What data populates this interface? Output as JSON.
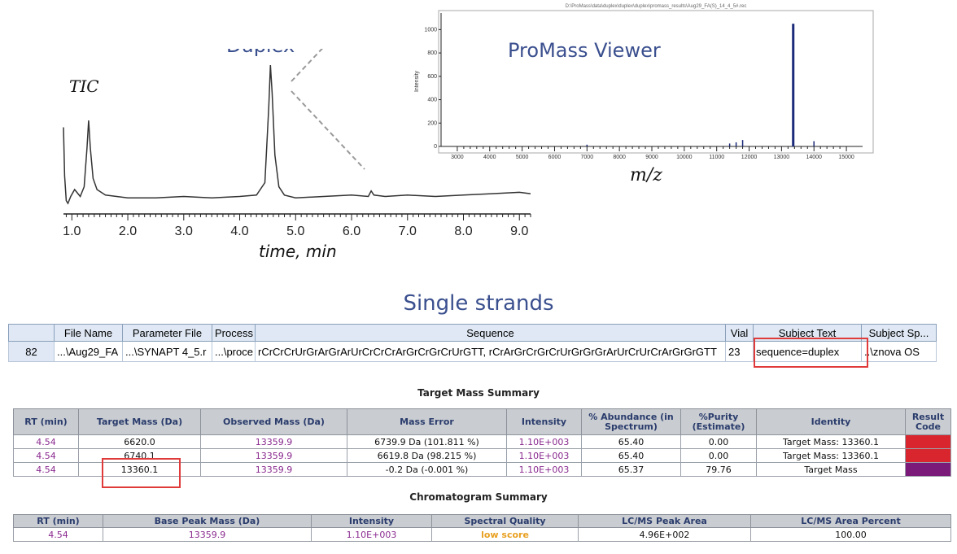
{
  "chromatogram": {
    "tic_label": "TIC",
    "duplex_label": "Duplex",
    "xlabel": "time, min",
    "x_ticks": [
      "1.0",
      "2.0",
      "3.0",
      "4.0",
      "5.0",
      "6.0",
      "7.0",
      "8.0",
      "9.0"
    ]
  },
  "chart_data": {
    "type": "line",
    "xlabel": "time, min",
    "xlim": [
      0.85,
      9.2
    ],
    "x_ticks": [
      1.0,
      2.0,
      3.0,
      4.0,
      5.0,
      6.0,
      7.0,
      8.0,
      9.0
    ],
    "series": [
      {
        "x": [
          0.85,
          0.87,
          0.9,
          0.93,
          0.98,
          1.05,
          1.15,
          1.22,
          1.27,
          1.3,
          1.33,
          1.38,
          1.45,
          1.6,
          1.8,
          2.0,
          2.5,
          3.0,
          3.5,
          4.0,
          4.3,
          4.45,
          4.52,
          4.55,
          4.58,
          4.63,
          4.7,
          4.8,
          5.0,
          5.5,
          6.0,
          6.3,
          6.35,
          6.4,
          6.6,
          7.0,
          7.5,
          8.0,
          8.5,
          9.0,
          9.2
        ],
        "y": [
          0.55,
          0.2,
          0.02,
          0.0,
          0.05,
          0.1,
          0.05,
          0.12,
          0.4,
          0.6,
          0.4,
          0.18,
          0.1,
          0.06,
          0.05,
          0.04,
          0.04,
          0.05,
          0.04,
          0.05,
          0.06,
          0.15,
          0.7,
          1.0,
          0.8,
          0.35,
          0.12,
          0.06,
          0.04,
          0.05,
          0.06,
          0.05,
          0.09,
          0.06,
          0.05,
          0.06,
          0.05,
          0.06,
          0.07,
          0.08,
          0.07
        ]
      }
    ]
  },
  "promass": {
    "header_path": "D:\\ProMass\\data\\duplex\\duplex\\duplex\\promass_results\\Aug29_FA(S)_14_4_5#.rec",
    "title": "ProMass Viewer",
    "ylabel": "Intensity",
    "y_ticks": [
      "0",
      "200",
      "400",
      "600",
      "800",
      "1000"
    ],
    "x_ticks": [
      "3000",
      "4000",
      "5000",
      "6000",
      "7000",
      "8000",
      "9000",
      "10000",
      "11000",
      "12000",
      "13000",
      "14000",
      "15000"
    ],
    "xlabel": "m/z",
    "chart_data": {
      "type": "bar",
      "xlim": [
        2500,
        15500
      ],
      "ylim": [
        0,
        1100
      ],
      "x": [
        7000,
        11400,
        11600,
        11800,
        13360,
        14000
      ],
      "y": [
        15,
        25,
        35,
        55,
        1050,
        45
      ]
    }
  },
  "single_strands": {
    "title": "Single strands",
    "headers": [
      "",
      "File Name",
      "Parameter File",
      "Process",
      "Sequence",
      "Vial",
      "Subject Text",
      "Subject Sp..."
    ],
    "row": [
      "82",
      "...\\Aug29_FA",
      "...\\SYNAPT 4_5.r",
      "...\\proce",
      "rCrCrCrUrGrArGrArUrCrCrCrArGrCrGrCrUrGTT, rCrArGrCrGrCrUrGrGrGrArUrCrUrCrArGrGrGTT",
      "23",
      "sequence=duplex",
      "..\\znova OS"
    ]
  },
  "target_mass_summary": {
    "title": "Target Mass Summary",
    "headers": [
      "RT (min)",
      "Target Mass (Da)",
      "Observed Mass (Da)",
      "Mass Error",
      "Intensity",
      "% Abundance (in Spectrum)",
      "%Purity (Estimate)",
      "Identity",
      "Result Code"
    ],
    "rows": [
      [
        "4.54",
        "6620.0",
        "13359.9",
        "6739.9 Da (101.811 %)",
        "1.10E+003",
        "65.40",
        "0.00",
        "Target Mass: 13360.1",
        "#d9262e"
      ],
      [
        "4.54",
        "6740.1",
        "13359.9",
        "6619.8 Da (98.215 %)",
        "1.10E+003",
        "65.40",
        "0.00",
        "Target Mass: 13360.1",
        "#d9262e"
      ],
      [
        "4.54",
        "13360.1",
        "13359.9",
        "-0.2 Da (-0.001 %)",
        "1.10E+003",
        "65.37",
        "79.76",
        "Target Mass",
        "#7b1a78"
      ]
    ]
  },
  "chromatogram_summary": {
    "title": "Chromatogram Summary",
    "headers": [
      "RT (min)",
      "Base Peak Mass (Da)",
      "Intensity",
      "Spectral Quality",
      "LC/MS Peak Area",
      "LC/MS Area Percent"
    ],
    "row": [
      "4.54",
      "13359.9",
      "1.10E+003",
      "low score",
      "4.96E+002",
      "100.00"
    ]
  }
}
